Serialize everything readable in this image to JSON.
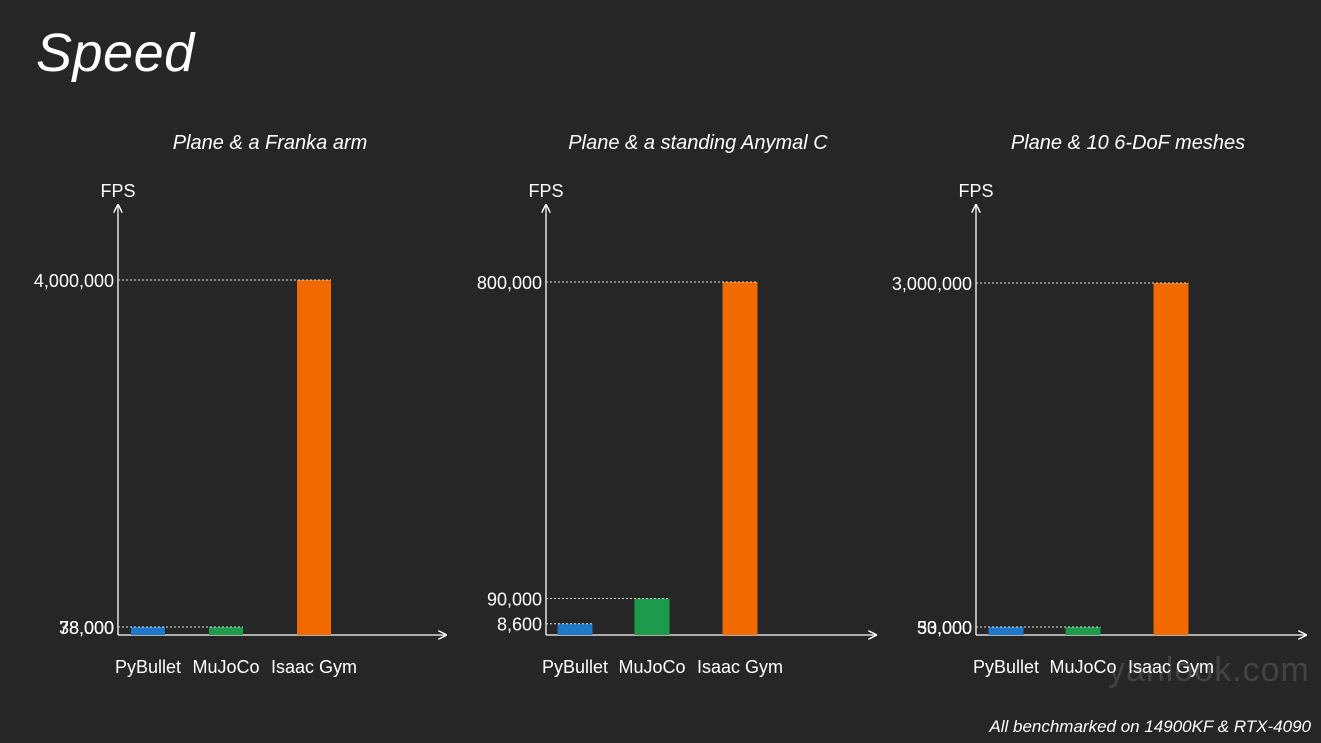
{
  "slide": {
    "title": "Speed",
    "footnote": "All benchmarked on 14900KF & RTX-4090",
    "watermark": "yanlook.com"
  },
  "colors": {
    "background": "#262626",
    "pybullet": "#1f77c8",
    "mujoco": "#1e9a4d",
    "isaac_gym": "#f06a00",
    "axis": "#ffffff"
  },
  "chart_data": [
    {
      "type": "bar",
      "title": "Plane & a Franka arm",
      "ylabel": "FPS",
      "categories": [
        "PyBullet",
        "MuJoCo",
        "Isaac Gym"
      ],
      "values": [
        38000,
        78000,
        4000000
      ],
      "tick_labels": [
        "38,000",
        "78,000",
        "4,000,000"
      ],
      "ylim": [
        0,
        4000000
      ],
      "colors": [
        "#1f77c8",
        "#1e9a4d",
        "#f06a00"
      ]
    },
    {
      "type": "bar",
      "title": "Plane & a standing Anymal C",
      "ylabel": "FPS",
      "categories": [
        "PyBullet",
        "MuJoCo",
        "Isaac Gym"
      ],
      "values": [
        8600,
        90000,
        800000
      ],
      "tick_labels": [
        "8,600",
        "90,000",
        "800,000"
      ],
      "ylim": [
        0,
        800000
      ],
      "colors": [
        "#1f77c8",
        "#1e9a4d",
        "#f06a00"
      ]
    },
    {
      "type": "bar",
      "title": "Plane & 10 6-DoF meshes",
      "ylabel": "FPS",
      "categories": [
        "PyBullet",
        "MuJoCo",
        "Isaac Gym"
      ],
      "values": [
        33000,
        50000,
        3000000
      ],
      "tick_labels": [
        "33,000",
        "50,000",
        "3,000,000"
      ],
      "ylim": [
        0,
        3000000
      ],
      "colors": [
        "#1f77c8",
        "#1e9a4d",
        "#f06a00"
      ]
    }
  ]
}
